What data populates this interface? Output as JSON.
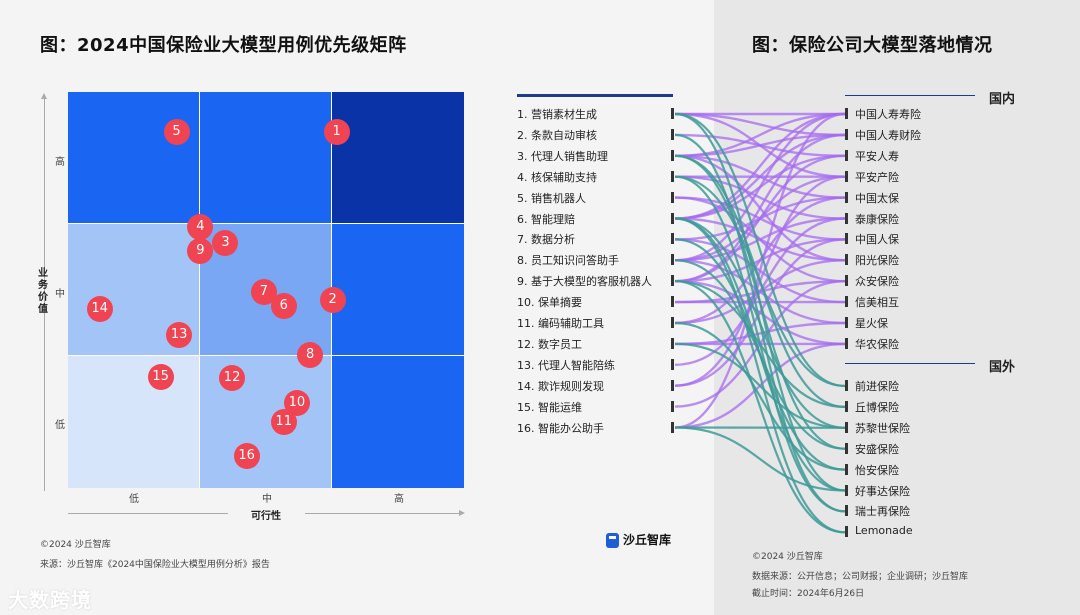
{
  "left": {
    "title": "图：2024中国保险业大模型用例优先级矩阵",
    "y_axis_label": "业务价值",
    "x_axis_label": "可行性",
    "y_ticks": [
      "高",
      "中",
      "低"
    ],
    "x_ticks": [
      "低",
      "中",
      "高"
    ],
    "cell_colors": [
      [
        "#1a66f2",
        "#1a66f2",
        "#0b33a8"
      ],
      [
        "#a3c4f7",
        "#79a7f4",
        "#1a66f2"
      ],
      [
        "#d7e5fb",
        "#a3c4f7",
        "#1a66f2"
      ]
    ],
    "dot_color": "#f04452",
    "dots": [
      {
        "n": "1",
        "feasibility": 2.03,
        "value": 2.7
      },
      {
        "n": "2",
        "feasibility": 2.0,
        "value": 1.43
      },
      {
        "n": "3",
        "feasibility": 1.19,
        "value": 1.86
      },
      {
        "n": "4",
        "feasibility": 1.0,
        "value": 1.98
      },
      {
        "n": "5",
        "feasibility": 0.82,
        "value": 2.7
      },
      {
        "n": "6",
        "feasibility": 1.63,
        "value": 1.38
      },
      {
        "n": "7",
        "feasibility": 1.48,
        "value": 1.49
      },
      {
        "n": "8",
        "feasibility": 1.83,
        "value": 1.01
      },
      {
        "n": "9",
        "feasibility": 1.0,
        "value": 1.8
      },
      {
        "n": "10",
        "feasibility": 1.73,
        "value": 0.65
      },
      {
        "n": "11",
        "feasibility": 1.63,
        "value": 0.51
      },
      {
        "n": "12",
        "feasibility": 1.24,
        "value": 0.84
      },
      {
        "n": "13",
        "feasibility": 0.84,
        "value": 1.16
      },
      {
        "n": "14",
        "feasibility": 0.24,
        "value": 1.36
      },
      {
        "n": "15",
        "feasibility": 0.7,
        "value": 0.85
      },
      {
        "n": "16",
        "feasibility": 1.35,
        "value": 0.25
      }
    ],
    "copyright": "©2024 沙丘智库",
    "source": "来源：沙丘智库《2024中国保险业大模型用例分析》报告"
  },
  "right": {
    "title": "图：保险公司大模型落地情况",
    "use_cases": [
      "1. 营销素材生成",
      "2. 条款自动审核",
      "3. 代理人销售助理",
      "4. 核保辅助支持",
      "5. 销售机器人",
      "6. 智能理赔",
      "7. 数据分析",
      "8. 员工知识问答助手",
      "9. 基于大模型的客服机器人",
      "10. 保单摘要",
      "11. 编码辅助工具",
      "12. 数字员工",
      "13. 代理人智能陪练",
      "14. 欺诈规则发现",
      "15. 智能运维",
      "16. 智能办公助手"
    ],
    "domestic_label": "国内",
    "foreign_label": "国外",
    "domestic": [
      "中国人寿寿险",
      "中国人寿财险",
      "平安人寿",
      "平安产险",
      "中国太保",
      "泰康保险",
      "中国人保",
      "阳光保险",
      "众安保险",
      "信美相互",
      "星火保",
      "华农保险"
    ],
    "foreign": [
      "前进保险",
      "丘博保险",
      "苏黎世保险",
      "安盛保险",
      "怡安保险",
      "好事达保险",
      "瑞士再保险",
      "Lemonade"
    ],
    "domestic_link_color": "#a66bf0",
    "foreign_link_color": "#3e9a98",
    "logo_text": "沙丘智库",
    "copyright": "©2024 沙丘智库",
    "data_source": "数据来源：公开信息；公司财报；企业调研；沙丘智库",
    "cutoff": "截止时间：2024年6月26日"
  },
  "watermark": "大数跨境"
}
